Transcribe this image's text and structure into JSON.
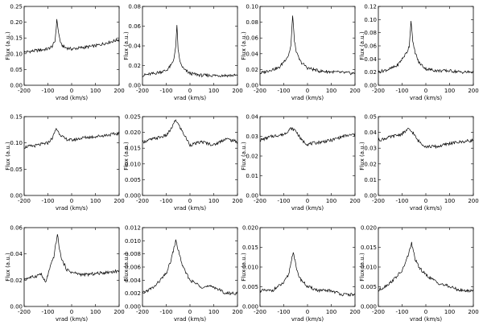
{
  "chart_data": [
    {
      "type": "line",
      "xlabel": "vrad (km/s)",
      "ylabel": "Flux (a.u.)",
      "xlim": [
        -200,
        200
      ],
      "ylim": [
        0,
        0.25
      ],
      "xticks": [
        "-200",
        "-100",
        "0",
        "100",
        "200"
      ],
      "yticks": [
        "0.00",
        "0.05",
        "0.10",
        "0.15",
        "0.20",
        "0.25"
      ],
      "series": [
        {
          "x": [
            -200,
            -150,
            -100,
            -80,
            -70,
            -62,
            -55,
            -45,
            -30,
            0,
            50,
            100,
            150,
            200
          ],
          "values": [
            0.105,
            0.11,
            0.115,
            0.125,
            0.14,
            0.21,
            0.165,
            0.13,
            0.12,
            0.115,
            0.12,
            0.125,
            0.135,
            0.145
          ]
        }
      ]
    },
    {
      "type": "line",
      "xlabel": "vrad (km/s)",
      "ylabel": "Flux (a.u.)",
      "xlim": [
        -200,
        200
      ],
      "ylim": [
        0,
        0.08
      ],
      "xticks": [
        "-200",
        "-100",
        "0",
        "100",
        "200"
      ],
      "yticks": [
        "0.00",
        "0.02",
        "0.04",
        "0.06",
        "0.08"
      ],
      "series": [
        {
          "x": [
            -200,
            -150,
            -100,
            -80,
            -70,
            -60,
            -55,
            -50,
            -40,
            -25,
            0,
            50,
            100,
            150,
            200
          ],
          "values": [
            0.01,
            0.012,
            0.015,
            0.02,
            0.025,
            0.038,
            0.062,
            0.035,
            0.022,
            0.016,
            0.012,
            0.01,
            0.01,
            0.01,
            0.01
          ]
        }
      ]
    },
    {
      "type": "line",
      "xlabel": "vrad (km/s)",
      "ylabel": "Flux (a.u.)",
      "xlim": [
        -200,
        200
      ],
      "ylim": [
        0,
        0.1
      ],
      "xticks": [
        "-200",
        "-100",
        "0",
        "100",
        "200"
      ],
      "yticks": [
        "0.00",
        "0.02",
        "0.04",
        "0.06",
        "0.08",
        "0.10"
      ],
      "series": [
        {
          "x": [
            -200,
            -150,
            -120,
            -100,
            -80,
            -70,
            -62,
            -55,
            -45,
            -30,
            0,
            50,
            100,
            150,
            200
          ],
          "values": [
            0.015,
            0.02,
            0.022,
            0.03,
            0.038,
            0.05,
            0.09,
            0.055,
            0.04,
            0.03,
            0.022,
            0.018,
            0.017,
            0.016,
            0.015
          ]
        }
      ]
    },
    {
      "type": "line",
      "xlabel": "vrad (km/s)",
      "ylabel": "Flux (a.u.)",
      "xlim": [
        -200,
        200
      ],
      "ylim": [
        0,
        0.12
      ],
      "xticks": [
        "-200",
        "-100",
        "0",
        "100",
        "200"
      ],
      "yticks": [
        "0.00",
        "0.02",
        "0.04",
        "0.06",
        "0.08",
        "0.10",
        "0.12"
      ],
      "series": [
        {
          "x": [
            -200,
            -150,
            -120,
            -100,
            -80,
            -70,
            -62,
            -55,
            -45,
            -30,
            0,
            50,
            100,
            150,
            200
          ],
          "values": [
            0.02,
            0.025,
            0.03,
            0.04,
            0.05,
            0.06,
            0.1,
            0.065,
            0.05,
            0.035,
            0.025,
            0.022,
            0.022,
            0.02,
            0.02
          ]
        }
      ]
    },
    {
      "type": "line",
      "xlabel": "vrad (km/s)",
      "ylabel": "Flux (a.u.)",
      "xlim": [
        -200,
        200
      ],
      "ylim": [
        0,
        0.15
      ],
      "xticks": [
        "-200",
        "-100",
        "0",
        "100",
        "200"
      ],
      "yticks": [
        "0.00",
        "0.05",
        "0.10",
        "0.15"
      ],
      "series": [
        {
          "x": [
            -200,
            -150,
            -100,
            -80,
            -65,
            -55,
            -45,
            -30,
            0,
            50,
            100,
            150,
            200
          ],
          "values": [
            0.092,
            0.095,
            0.1,
            0.11,
            0.128,
            0.12,
            0.115,
            0.108,
            0.105,
            0.11,
            0.112,
            0.115,
            0.118
          ]
        }
      ]
    },
    {
      "type": "line",
      "xlabel": "vrad (km/s)",
      "ylabel": "Flux (a.u.)",
      "xlim": [
        -200,
        200
      ],
      "ylim": [
        0,
        0.025
      ],
      "xticks": [
        "-200",
        "-100",
        "0",
        "100",
        "200"
      ],
      "yticks": [
        "0.000",
        "0.005",
        "0.010",
        "0.015",
        "0.020",
        "0.025"
      ],
      "series": [
        {
          "x": [
            -200,
            -150,
            -100,
            -80,
            -60,
            -45,
            -30,
            0,
            50,
            100,
            150,
            200
          ],
          "values": [
            0.017,
            0.018,
            0.019,
            0.021,
            0.024,
            0.022,
            0.02,
            0.016,
            0.017,
            0.016,
            0.018,
            0.017
          ]
        }
      ]
    },
    {
      "type": "line",
      "xlabel": "vrad (km/s)",
      "ylabel": "Flux (a.u.)",
      "xlim": [
        -200,
        200
      ],
      "ylim": [
        0,
        0.04
      ],
      "xticks": [
        "-200",
        "-100",
        "0",
        "100",
        "200"
      ],
      "yticks": [
        "0.00",
        "0.01",
        "0.02",
        "0.03",
        "0.04"
      ],
      "series": [
        {
          "x": [
            -200,
            -150,
            -100,
            -70,
            -50,
            -25,
            0,
            50,
            100,
            150,
            200
          ],
          "values": [
            0.028,
            0.03,
            0.031,
            0.034,
            0.033,
            0.028,
            0.026,
            0.027,
            0.028,
            0.03,
            0.031
          ]
        }
      ]
    },
    {
      "type": "line",
      "xlabel": "vrad (km/s)",
      "ylabel": "Flux (a.u.)",
      "xlim": [
        -200,
        200
      ],
      "ylim": [
        0,
        0.05
      ],
      "xticks": [
        "-200",
        "-100",
        "0",
        "100",
        "200"
      ],
      "yticks": [
        "0.00",
        "0.01",
        "0.02",
        "0.03",
        "0.04",
        "0.05"
      ],
      "series": [
        {
          "x": [
            -200,
            -150,
            -100,
            -75,
            -55,
            -35,
            0,
            50,
            100,
            150,
            200
          ],
          "values": [
            0.035,
            0.037,
            0.039,
            0.042,
            0.04,
            0.035,
            0.031,
            0.031,
            0.033,
            0.034,
            0.035
          ]
        }
      ]
    },
    {
      "type": "line",
      "xlabel": "vrad (km/s)",
      "ylabel": "Flux (a.u.)",
      "xlim": [
        -200,
        200
      ],
      "ylim": [
        0,
        0.06
      ],
      "xticks": [
        "-200",
        "-100",
        "0",
        "100",
        "200"
      ],
      "yticks": [
        "0.00",
        "0.02",
        "0.04",
        "0.06"
      ],
      "series": [
        {
          "x": [
            -200,
            -150,
            -130,
            -110,
            -90,
            -75,
            -60,
            -50,
            -40,
            -20,
            0,
            50,
            100,
            150,
            200
          ],
          "values": [
            0.021,
            0.023,
            0.025,
            0.018,
            0.03,
            0.038,
            0.055,
            0.042,
            0.035,
            0.028,
            0.026,
            0.024,
            0.025,
            0.026,
            0.027
          ]
        }
      ]
    },
    {
      "type": "line",
      "xlabel": "vrad (km/s)",
      "ylabel": "Flux (a.u.)",
      "xlim": [
        -200,
        200
      ],
      "ylim": [
        0,
        0.012
      ],
      "xticks": [
        "-200",
        "-100",
        "0",
        "100",
        "200"
      ],
      "yticks": [
        "0.000",
        "0.002",
        "0.004",
        "0.006",
        "0.008",
        "0.010",
        "0.012"
      ],
      "series": [
        {
          "x": [
            -200,
            -150,
            -100,
            -80,
            -60,
            -45,
            -30,
            0,
            50,
            100,
            150,
            200
          ],
          "values": [
            0.002,
            0.003,
            0.005,
            0.007,
            0.01,
            0.008,
            0.006,
            0.004,
            0.003,
            0.003,
            0.002,
            0.002
          ]
        }
      ]
    },
    {
      "type": "line",
      "xlabel": "vrad (km/s)",
      "ylabel": "Flux (a.u.)",
      "xlim": [
        -200,
        200
      ],
      "ylim": [
        0,
        0.02
      ],
      "xticks": [
        "-200",
        "-100",
        "0",
        "100",
        "200"
      ],
      "yticks": [
        "0.000",
        "0.005",
        "0.010",
        "0.015",
        "0.020"
      ],
      "series": [
        {
          "x": [
            -200,
            -150,
            -100,
            -80,
            -60,
            -45,
            -30,
            0,
            50,
            100,
            150,
            200
          ],
          "values": [
            0.004,
            0.004,
            0.006,
            0.008,
            0.014,
            0.009,
            0.007,
            0.005,
            0.004,
            0.004,
            0.003,
            0.003
          ]
        }
      ]
    },
    {
      "type": "line",
      "xlabel": "vrad (km/s)",
      "ylabel": "Flux (a.u.)",
      "xlim": [
        -200,
        200
      ],
      "ylim": [
        0,
        0.02
      ],
      "xticks": [
        "-200",
        "-100",
        "0",
        "100",
        "200"
      ],
      "yticks": [
        "0.000",
        "0.005",
        "0.010",
        "0.015",
        "0.020"
      ],
      "series": [
        {
          "x": [
            -200,
            -150,
            -100,
            -80,
            -60,
            -45,
            -30,
            0,
            50,
            100,
            150,
            200
          ],
          "values": [
            0.004,
            0.006,
            0.009,
            0.012,
            0.016,
            0.012,
            0.01,
            0.008,
            0.006,
            0.005,
            0.004,
            0.004
          ]
        }
      ]
    }
  ]
}
